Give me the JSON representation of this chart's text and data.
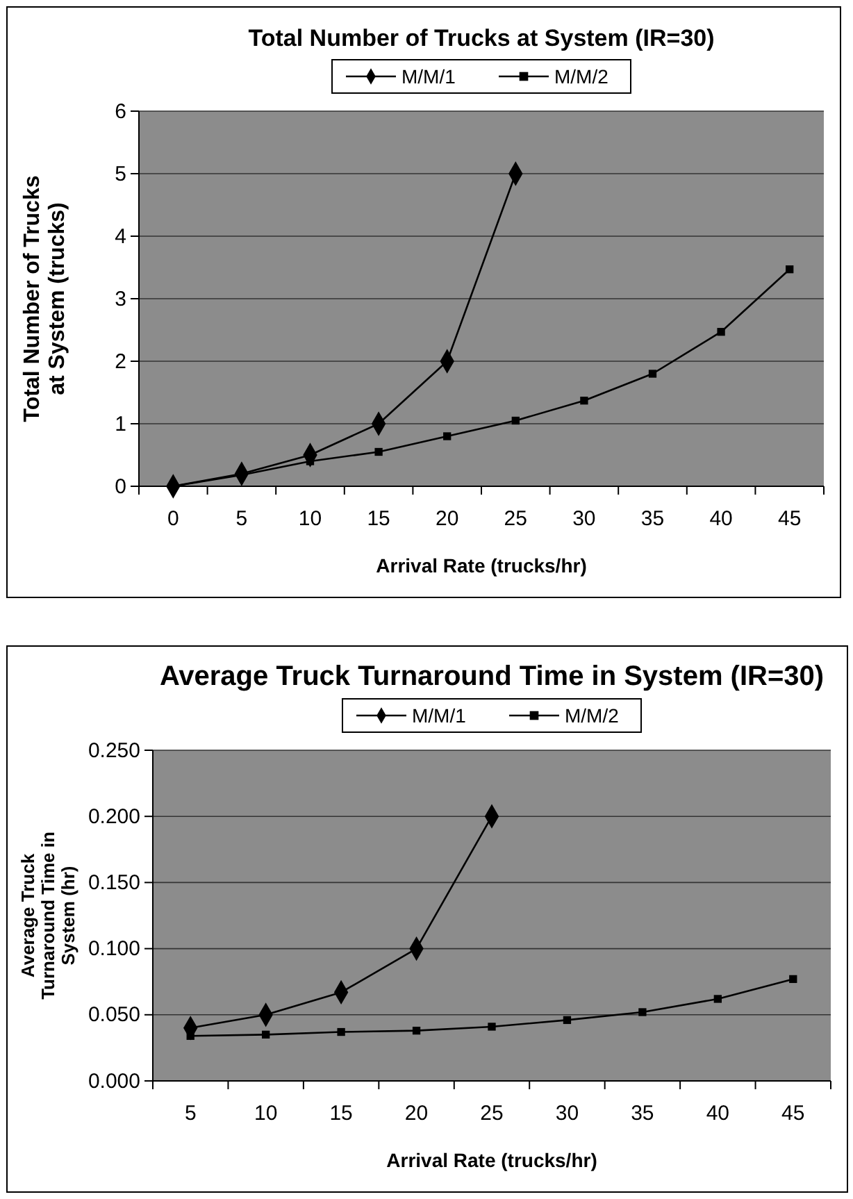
{
  "chart_data": [
    {
      "type": "line",
      "title": "Total Number of Trucks at System (IR=30)",
      "xlabel": "Arrival Rate (trucks/hr)",
      "ylabel": "Total Number of Trucks at System (trucks)",
      "categories": [
        "0",
        "5",
        "10",
        "15",
        "20",
        "25",
        "30",
        "35",
        "40",
        "45"
      ],
      "series": [
        {
          "name": "M/M/1",
          "color": "#000000",
          "marker": "diamond",
          "values": [
            0,
            0.2,
            0.5,
            1.0,
            2.0,
            5.0,
            null,
            null,
            null,
            null
          ]
        },
        {
          "name": "M/M/2",
          "color": "#000000",
          "marker": "square",
          "values": [
            0,
            0.18,
            0.4,
            0.55,
            0.8,
            1.05,
            1.37,
            1.8,
            2.47,
            3.47
          ]
        }
      ],
      "ylim": [
        0,
        6
      ],
      "yticks": [
        0,
        1,
        2,
        3,
        4,
        5,
        6
      ],
      "grid": "y",
      "legend": "top",
      "line_style": "solid"
    },
    {
      "type": "line",
      "title": "Average Truck Turnaround Time in System (IR=30)",
      "xlabel": "Arrival Rate (trucks/hr)",
      "ylabel": "Average Truck Turnaround Time in System (hr)",
      "categories": [
        "5",
        "10",
        "15",
        "20",
        "25",
        "30",
        "35",
        "40",
        "45"
      ],
      "series": [
        {
          "name": "M/M/1",
          "color": "#000000",
          "marker": "diamond",
          "values": [
            0.04,
            0.05,
            0.067,
            0.1,
            0.2,
            null,
            null,
            null,
            null
          ]
        },
        {
          "name": "M/M/2",
          "color": "#000000",
          "marker": "square",
          "values": [
            0.034,
            0.035,
            0.037,
            0.038,
            0.041,
            0.046,
            0.052,
            0.062,
            0.077
          ]
        }
      ],
      "ylim": [
        0,
        0.25
      ],
      "yticks": [
        {
          "value": 0,
          "label": "0.000"
        },
        {
          "value": 0.05,
          "label": "0.050"
        },
        {
          "value": 0.1,
          "label": "0.100"
        },
        {
          "value": 0.15,
          "label": "0.150"
        },
        {
          "value": 0.2,
          "label": "0.200"
        },
        {
          "value": 0.25,
          "label": "0.250"
        }
      ],
      "grid": "y",
      "legend": "top",
      "line_style": "solid"
    }
  ]
}
